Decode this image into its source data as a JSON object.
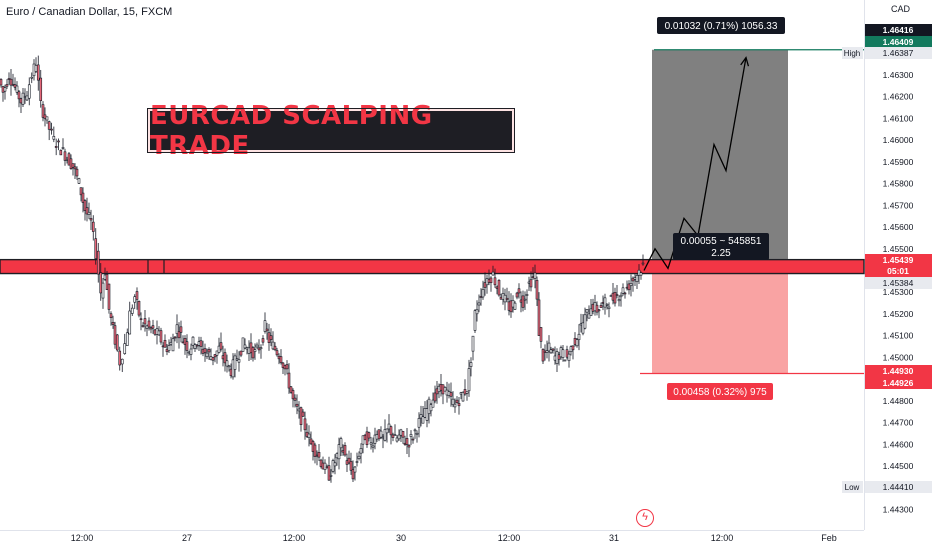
{
  "chart_title": "Euro / Canadian Dollar, 15, FXCM",
  "currency": "CAD",
  "banner_text": "EURCAD SCALPING TRADE",
  "colors": {
    "up": "#26a69a",
    "down": "#ef5350",
    "candle_body": "#f06b7d",
    "candle_dark": "#131722",
    "zone_red": "#f23645",
    "target_zone": "#808080",
    "stop_zone": "#f9a3a3",
    "target_line": "#137a5e",
    "stop_line": "#f23645"
  },
  "chart_data": {
    "type": "line",
    "title": "Euro / Canadian Dollar, 15, FXCM",
    "ylim": [
      1.443,
      1.465
    ],
    "y_ticks": [
      1.463,
      1.462,
      1.461,
      1.46,
      1.459,
      1.458,
      1.457,
      1.456,
      1.455,
      1.453,
      1.452,
      1.451,
      1.45,
      1.448,
      1.447,
      1.446,
      1.445,
      1.443
    ],
    "x_ticks": [
      {
        "label": "12:00",
        "pos": 0
      },
      {
        "label": "27",
        "pos": 1
      },
      {
        "label": "12:00",
        "pos": 2
      },
      {
        "label": "30",
        "pos": 3
      },
      {
        "label": "12:00",
        "pos": 4
      },
      {
        "label": "31",
        "pos": 5
      },
      {
        "label": "12:00",
        "pos": 6
      },
      {
        "label": "Feb",
        "pos": 7
      }
    ],
    "price_path": [
      [
        0,
        1.4628
      ],
      [
        4,
        1.4622
      ],
      [
        10,
        1.463
      ],
      [
        16,
        1.4624
      ],
      [
        22,
        1.4618
      ],
      [
        28,
        1.4622
      ],
      [
        33,
        1.463
      ],
      [
        37,
        1.4636
      ],
      [
        42,
        1.4616
      ],
      [
        48,
        1.4608
      ],
      [
        55,
        1.46
      ],
      [
        62,
        1.4596
      ],
      [
        68,
        1.4592
      ],
      [
        74,
        1.4588
      ],
      [
        80,
        1.458
      ],
      [
        86,
        1.4568
      ],
      [
        92,
        1.4562
      ],
      [
        97,
        1.4548
      ],
      [
        102,
        1.453
      ],
      [
        106,
        1.454
      ],
      [
        110,
        1.4522
      ],
      [
        116,
        1.4508
      ],
      [
        121,
        1.4498
      ],
      [
        126,
        1.4506
      ],
      [
        131,
        1.452
      ],
      [
        136,
        1.4528
      ],
      [
        142,
        1.4516
      ],
      [
        148,
        1.4514
      ],
      [
        154,
        1.4512
      ],
      [
        160,
        1.451
      ],
      [
        166,
        1.4504
      ],
      [
        172,
        1.4506
      ],
      [
        178,
        1.4514
      ],
      [
        184,
        1.4508
      ],
      [
        190,
        1.4504
      ],
      [
        196,
        1.4508
      ],
      [
        202,
        1.4504
      ],
      [
        208,
        1.4502
      ],
      [
        214,
        1.45
      ],
      [
        220,
        1.4504
      ],
      [
        226,
        1.4498
      ],
      [
        232,
        1.4494
      ],
      [
        238,
        1.45
      ],
      [
        244,
        1.4506
      ],
      [
        250,
        1.4504
      ],
      [
        256,
        1.4502
      ],
      [
        262,
        1.4506
      ],
      [
        266,
        1.4514
      ],
      [
        270,
        1.4508
      ],
      [
        276,
        1.4504
      ],
      [
        282,
        1.45
      ],
      [
        288,
        1.4492
      ],
      [
        294,
        1.448
      ],
      [
        300,
        1.4474
      ],
      [
        306,
        1.4468
      ],
      [
        312,
        1.446
      ],
      [
        318,
        1.4456
      ],
      [
        324,
        1.445
      ],
      [
        330,
        1.4446
      ],
      [
        336,
        1.4452
      ],
      [
        342,
        1.446
      ],
      [
        348,
        1.4452
      ],
      [
        354,
        1.4446
      ],
      [
        360,
        1.4456
      ],
      [
        366,
        1.4464
      ],
      [
        372,
        1.446
      ],
      [
        378,
        1.4466
      ],
      [
        384,
        1.4462
      ],
      [
        390,
        1.4468
      ],
      [
        396,
        1.4462
      ],
      [
        402,
        1.4464
      ],
      [
        408,
        1.446
      ],
      [
        414,
        1.4464
      ],
      [
        420,
        1.447
      ],
      [
        426,
        1.4474
      ],
      [
        432,
        1.448
      ],
      [
        438,
        1.4484
      ],
      [
        444,
        1.4486
      ],
      [
        450,
        1.4482
      ],
      [
        456,
        1.4478
      ],
      [
        462,
        1.4482
      ],
      [
        468,
        1.4486
      ],
      [
        472,
        1.45
      ],
      [
        476,
        1.452
      ],
      [
        482,
        1.453
      ],
      [
        488,
        1.4536
      ],
      [
        494,
        1.4538
      ],
      [
        500,
        1.453
      ],
      [
        506,
        1.4526
      ],
      [
        512,
        1.4522
      ],
      [
        518,
        1.453
      ],
      [
        524,
        1.4526
      ],
      [
        530,
        1.4534
      ],
      [
        536,
        1.4538
      ],
      [
        540,
        1.4512
      ],
      [
        544,
        1.45
      ],
      [
        550,
        1.4504
      ],
      [
        556,
        1.45
      ],
      [
        562,
        1.4502
      ],
      [
        568,
        1.45
      ],
      [
        574,
        1.4506
      ],
      [
        580,
        1.4512
      ],
      [
        586,
        1.4518
      ],
      [
        592,
        1.4524
      ],
      [
        598,
        1.4522
      ],
      [
        604,
        1.4524
      ],
      [
        610,
        1.4526
      ],
      [
        616,
        1.4528
      ],
      [
        622,
        1.453
      ],
      [
        628,
        1.4532
      ],
      [
        634,
        1.4536
      ],
      [
        640,
        1.454
      ],
      [
        644,
        1.4542
      ]
    ],
    "projection_path": [
      [
        644,
        1.454
      ],
      [
        655,
        1.455
      ],
      [
        668,
        1.4541
      ],
      [
        684,
        1.4564
      ],
      [
        698,
        1.4556
      ],
      [
        714,
        1.4598
      ],
      [
        726,
        1.4586
      ],
      [
        746,
        1.4638
      ]
    ],
    "resistance_zone": [
      1.45386,
      1.4545
    ],
    "zone_markers_x": [
      148,
      164
    ],
    "position": {
      "entry": 1.45384,
      "target": 1.46416,
      "stop": 1.44926,
      "x_start": 652,
      "x_end": 788
    },
    "target_label": "0.01032 (0.71%) 1056.33",
    "stop_label": "0.00458 (0.32%) 975",
    "ratio_label_top": "0.00055 ~ 545851",
    "ratio_label_bottom": "2.25",
    "axis_badges": [
      {
        "text": "1.46416",
        "value": 1.46416,
        "style": "dark"
      },
      {
        "text": "1.46409",
        "value": 1.46409,
        "style": "green"
      },
      {
        "text": "1.46387",
        "value": 1.46387,
        "style": "plain",
        "side_label": "High"
      },
      {
        "text": "1.45439",
        "value": 1.45439,
        "style": "red-top"
      },
      {
        "text": "05:01",
        "value": 1.45425,
        "style": "red-bottom"
      },
      {
        "text": "1.45384",
        "value": 1.45384,
        "style": "plain"
      },
      {
        "text": "1.44930",
        "value": 1.4493,
        "style": "red-top"
      },
      {
        "text": "1.44926",
        "value": 1.44926,
        "style": "red-bottom"
      },
      {
        "text": "1.44410",
        "value": 1.4441,
        "style": "plain",
        "side_label": "Low"
      }
    ]
  }
}
